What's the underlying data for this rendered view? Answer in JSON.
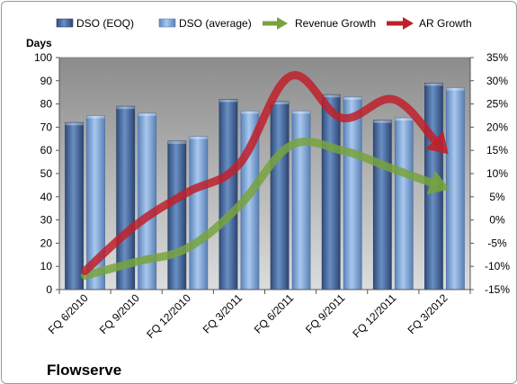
{
  "chart_data": {
    "type": "bar",
    "categories": [
      "FQ 6/2010",
      "FQ 9/2010",
      "FQ 12/2010",
      "FQ 3/2011",
      "FQ 6/2011",
      "FQ 9/2011",
      "FQ 12/2011",
      "FQ 3/2012"
    ],
    "series": [
      {
        "name": "DSO (EOQ)",
        "axis": "left",
        "kind": "bar",
        "color": "#4a6fa5",
        "values": [
          72,
          79,
          64,
          82,
          81,
          84,
          73,
          89
        ]
      },
      {
        "name": "DSO (average)",
        "axis": "left",
        "kind": "bar",
        "color": "#8eb4e3",
        "values": [
          75,
          76,
          66,
          77,
          77,
          83,
          74,
          87
        ]
      },
      {
        "name": "Revenue Growth",
        "axis": "right",
        "kind": "arrow-line",
        "color": "#77a33e",
        "values": [
          -12,
          -9,
          -6,
          3,
          16,
          15,
          11,
          7
        ]
      },
      {
        "name": "AR Growth",
        "axis": "right",
        "kind": "arrow-line",
        "color": "#c0202a",
        "values": [
          -11,
          -1,
          6,
          12,
          31,
          22,
          26,
          15
        ]
      }
    ],
    "y_left": {
      "title": "Days",
      "min": 0,
      "max": 100,
      "step": 10
    },
    "y_right": {
      "min": -15,
      "max": 35,
      "step": 5,
      "format": "percent"
    },
    "legend_position": "top",
    "grid": false,
    "title": "",
    "company_label": "Flowserve"
  }
}
